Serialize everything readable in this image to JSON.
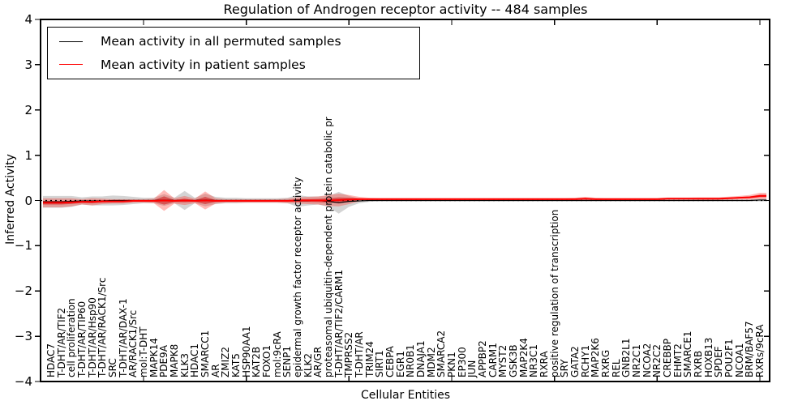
{
  "title": "Regulation of Androgen receptor activity -- 484 samples",
  "legend": {
    "items": [
      {
        "label": "Mean activity in all permuted samples",
        "color": "#000000"
      },
      {
        "label": "Mean activity in patient samples",
        "color": "#ff0000"
      }
    ]
  },
  "axes": {
    "x_label": "Cellular Entities",
    "y_label": "Inferred Activity",
    "y_ticks": {
      "values": [
        4,
        3,
        2,
        1,
        0,
        -1,
        -2,
        -3,
        -4
      ],
      "labels": [
        "4",
        "3",
        "2",
        "1",
        "0",
        "−1",
        "−2",
        "−3",
        "−4"
      ]
    }
  },
  "chart_data": {
    "type": "line",
    "title": "Regulation of Androgen receptor activity -- 484 samples",
    "xlabel": "Cellular Entities",
    "ylabel": "Inferred Activity",
    "ylim": [
      -4,
      4
    ],
    "grid": false,
    "legend_position": "upper left",
    "zero_line": {
      "style": "dotted",
      "color": "#000000",
      "y": 0
    },
    "categories": [
      "HDAC7",
      "T-DHT/AR/TIF2",
      "cell proliferation",
      "T-DHT/AR/TIP60",
      "T-DHT/AR/Hsp90",
      "T-DHT/AR/RACK1/Src",
      "SRC",
      "T-DHT/AR/DAX-1",
      "AR/RACK1/Src",
      "mol:T-DHT",
      "MAPK14",
      "PDE9A",
      "MAPK8",
      "KLK3",
      "HDAC1",
      "SMARCC1",
      "AR",
      "ZMIZ2",
      "KAT5",
      "HSP90AA1",
      "KAT2B",
      "FOXO1",
      "mol:9cRA",
      "SENP1",
      "epidermal growth factor receptor activity",
      "KLK2",
      "AR/GR",
      "proteasomal ubiquitin-dependent protein catabolic pr",
      "T-DHT/AR/TIF2/CARM1",
      "TMPRSS2",
      "T-DHT/AR",
      "TRIM24",
      "SIRT1",
      "CEBPA",
      "EGR1",
      "NR0B1",
      "DNAJA1",
      "MDM2",
      "SMARCA2",
      "PKN1",
      "EP300",
      "JUN",
      "APPBP2",
      "CARM1",
      "MYST2",
      "GSK3B",
      "MAP2K4",
      "NR3C1",
      "RXRA",
      "positive regulation of transcription",
      "SRY",
      "GATA2",
      "RCHY1",
      "MAP2K6",
      "RXRG",
      "REL",
      "GNB2L1",
      "NR2C1",
      "NCOA2",
      "NR2C2",
      "CREBBP",
      "EHMT2",
      "SMARCE1",
      "RXRB",
      "HOXB13",
      "SPDEF",
      "POU2F1",
      "NCOA1",
      "BRM/BAF57",
      "RXRs/9cRA"
    ],
    "series": [
      {
        "name": "Mean activity in all permuted samples",
        "color": "#000000",
        "width": 1.2,
        "values": [
          -0.03,
          -0.03,
          -0.02,
          -0.01,
          -0.01,
          -0.01,
          0,
          0,
          0,
          0,
          0,
          0.01,
          0,
          0,
          0,
          0.01,
          0,
          0,
          0,
          0,
          0,
          0,
          0,
          0,
          -0.01,
          -0.01,
          0,
          -0.02,
          -0.05,
          -0.02,
          -0.01,
          0,
          0,
          0,
          0,
          0,
          0,
          0,
          0,
          0,
          0,
          0,
          0,
          0,
          0,
          0,
          0,
          0,
          0,
          0,
          0,
          0,
          0,
          0,
          0,
          0,
          0,
          0,
          0,
          0,
          0,
          0,
          0,
          0,
          0,
          0,
          0,
          0,
          0,
          0.01
        ]
      },
      {
        "name": "Mean activity in patient samples",
        "color": "#ff0000",
        "width": 2,
        "values": [
          -0.05,
          -0.05,
          -0.04,
          -0.03,
          -0.03,
          -0.02,
          -0.02,
          -0.02,
          -0.01,
          -0.01,
          -0.01,
          0,
          -0.01,
          0,
          -0.01,
          0,
          -0.01,
          -0.01,
          -0.01,
          -0.01,
          -0.01,
          -0.01,
          -0.01,
          -0.01,
          0,
          0,
          0,
          0,
          0.01,
          0.02,
          0.03,
          0.03,
          0.03,
          0.03,
          0.03,
          0.03,
          0.03,
          0.03,
          0.03,
          0.03,
          0.03,
          0.03,
          0.03,
          0.03,
          0.03,
          0.03,
          0.03,
          0.03,
          0.03,
          0.03,
          0.03,
          0.03,
          0.04,
          0.03,
          0.03,
          0.03,
          0.03,
          0.03,
          0.03,
          0.03,
          0.04,
          0.04,
          0.04,
          0.04,
          0.04,
          0.04,
          0.05,
          0.06,
          0.07,
          0.1
        ]
      }
    ],
    "bands": [
      {
        "name": "permuted-samples-range",
        "color": "rgba(120,120,120,0.32)",
        "center_series": 0,
        "half_widths": [
          0.13,
          0.13,
          0.12,
          0.08,
          0.1,
          0.1,
          0.11,
          0.1,
          0.08,
          0.06,
          0.06,
          0.13,
          0.06,
          0.21,
          0.06,
          0.14,
          0.08,
          0.06,
          0.06,
          0.05,
          0.05,
          0.05,
          0.05,
          0.06,
          0.13,
          0.1,
          0.09,
          0.12,
          0.24,
          0.12,
          0.05,
          0.03,
          0.02,
          0.02,
          0.02,
          0.02,
          0.02,
          0.02,
          0.02,
          0.02,
          0.02,
          0.02,
          0.02,
          0.02,
          0.02,
          0.02,
          0.02,
          0.02,
          0.02,
          0.02,
          0.02,
          0.02,
          0.02,
          0.02,
          0.02,
          0.02,
          0.02,
          0.02,
          0.02,
          0.02,
          0.02,
          0.02,
          0.02,
          0.02,
          0.02,
          0.02,
          0.02,
          0.02,
          0.02,
          0.03
        ]
      },
      {
        "name": "patient-samples-range",
        "color": "rgba(255,30,20,0.30)",
        "core_color": "rgba(205,10,10,0.50)",
        "center_series": 1,
        "half_widths": [
          0.1,
          0.1,
          0.09,
          0.06,
          0.08,
          0.06,
          0.05,
          0.05,
          0.04,
          0.04,
          0.05,
          0.23,
          0.06,
          0.1,
          0.05,
          0.2,
          0.06,
          0.04,
          0.04,
          0.04,
          0.04,
          0.04,
          0.04,
          0.05,
          0.07,
          0.08,
          0.09,
          0.12,
          0.14,
          0.1,
          0.05,
          0.03,
          0.025,
          0.025,
          0.025,
          0.025,
          0.025,
          0.025,
          0.025,
          0.025,
          0.025,
          0.025,
          0.025,
          0.025,
          0.025,
          0.025,
          0.025,
          0.025,
          0.025,
          0.025,
          0.025,
          0.03,
          0.04,
          0.03,
          0.025,
          0.025,
          0.025,
          0.025,
          0.025,
          0.025,
          0.025,
          0.025,
          0.025,
          0.03,
          0.03,
          0.03,
          0.035,
          0.04,
          0.05,
          0.07
        ]
      }
    ]
  }
}
